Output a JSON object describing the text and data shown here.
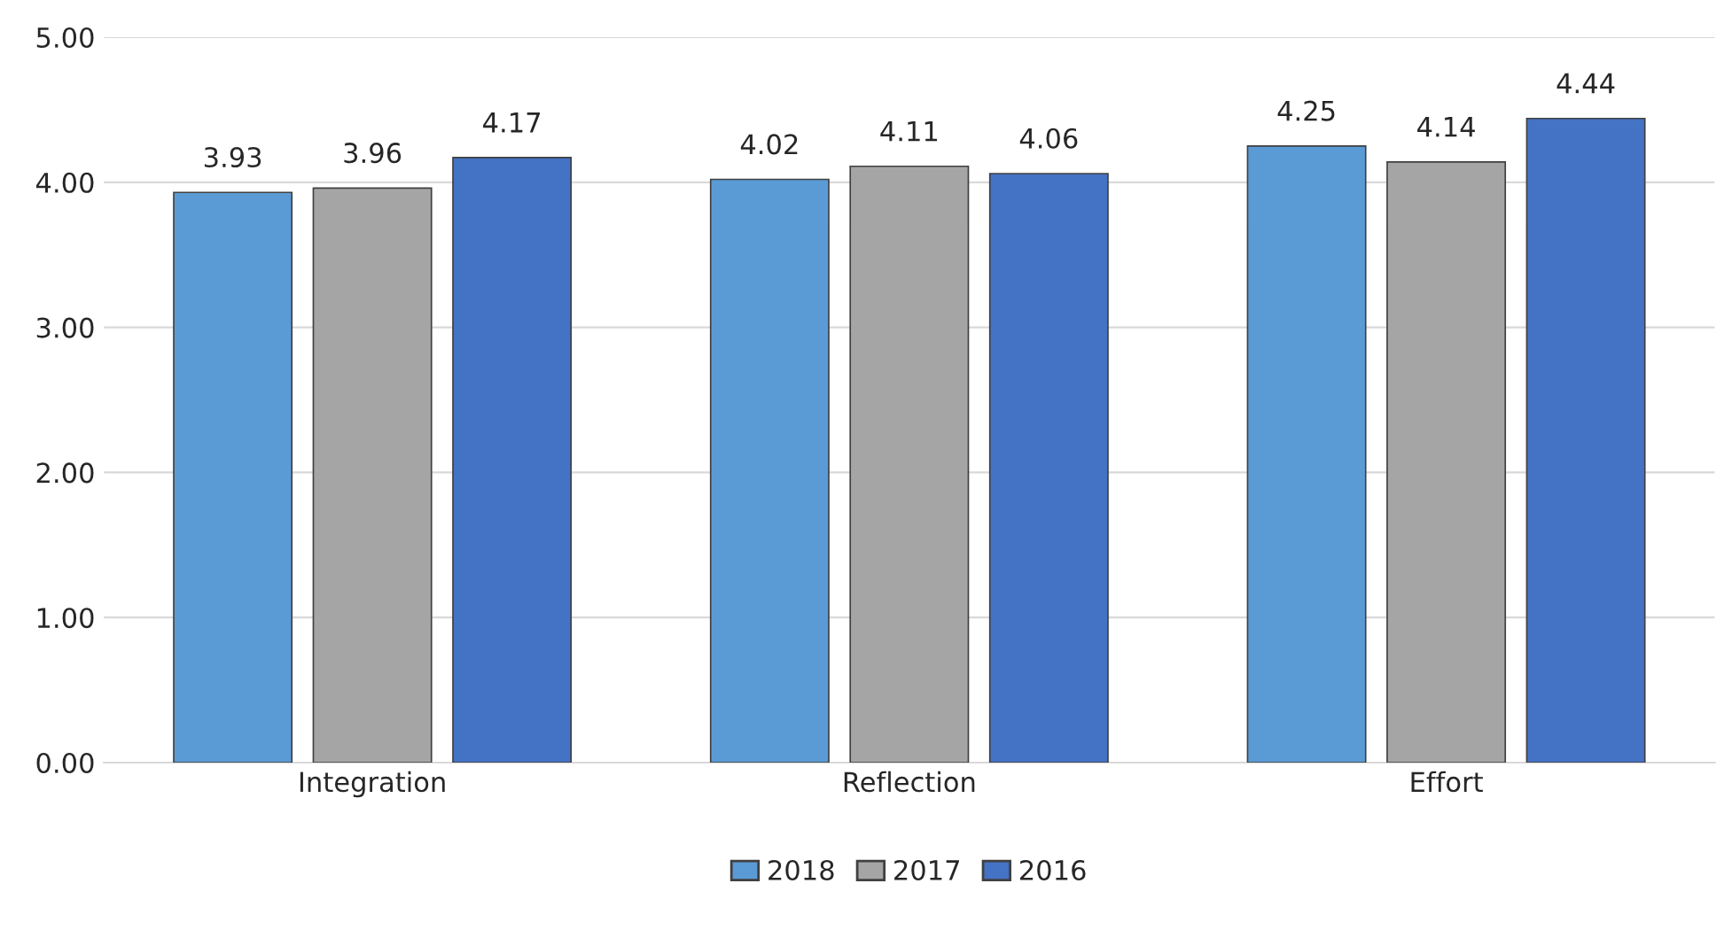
{
  "chart_data": {
    "type": "bar",
    "categories": [
      "Integration",
      "Reflection",
      "Effort"
    ],
    "series": [
      {
        "name": "2018",
        "color": "#5b9bd5",
        "values": [
          3.93,
          4.02,
          4.25
        ]
      },
      {
        "name": "2017",
        "color": "#a5a5a5",
        "values": [
          3.96,
          4.11,
          4.14
        ]
      },
      {
        "name": "2016",
        "color": "#4472c4",
        "values": [
          4.17,
          4.06,
          4.44
        ]
      }
    ],
    "ylim": [
      0,
      5
    ],
    "yticks": [
      {
        "value": 0,
        "label": "0.00"
      },
      {
        "value": 1,
        "label": "1.00"
      },
      {
        "value": 2,
        "label": "2.00"
      },
      {
        "value": 3,
        "label": "3.00"
      },
      {
        "value": 4,
        "label": "4.00"
      },
      {
        "value": 5,
        "label": "5.00"
      }
    ],
    "grid": "y",
    "legend": "bottom",
    "data_labels": true
  }
}
